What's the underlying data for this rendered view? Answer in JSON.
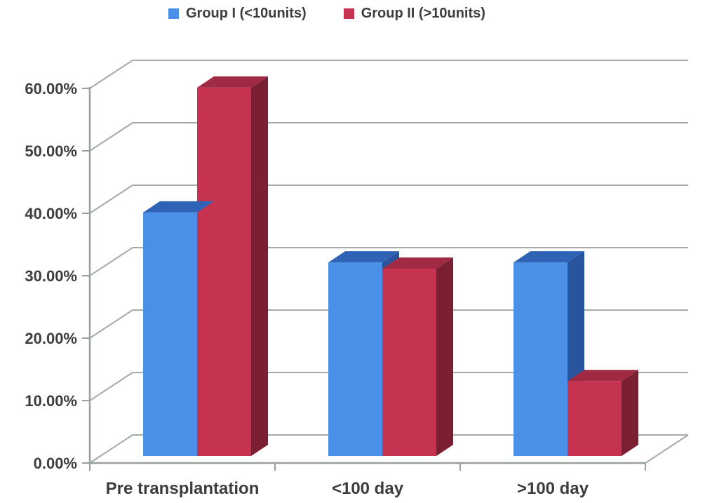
{
  "chart_data": {
    "type": "bar",
    "variant": "3d-clustered-column",
    "title": "",
    "xlabel": "",
    "ylabel": "",
    "categories": [
      "Pre transplantation",
      "<100 day",
      ">100 day"
    ],
    "series": [
      {
        "name": "Group I (<10units)",
        "values": [
          39,
          31,
          31
        ],
        "color_front": "#4a90e8",
        "color_top": "#2f63b5",
        "color_side": "#28549e"
      },
      {
        "name": "Group II (>10units)",
        "values": [
          59,
          30,
          12
        ],
        "color_front": "#c63350",
        "color_top": "#a02a44",
        "color_side": "#7b1f33"
      }
    ],
    "y_ticks": [
      {
        "value": 0,
        "label": "0.00%"
      },
      {
        "value": 10,
        "label": "10.00%"
      },
      {
        "value": 20,
        "label": "20.00%"
      },
      {
        "value": 30,
        "label": "30.00%"
      },
      {
        "value": 40,
        "label": "40.00%"
      },
      {
        "value": 50,
        "label": "50.00%"
      },
      {
        "value": 60,
        "label": "60.00%"
      }
    ],
    "ylim": [
      0,
      60
    ],
    "grid": true,
    "legend_position": "top",
    "colors": {
      "axis": "#98a199",
      "grid": "#a4aca5",
      "text": "#3d3d3d",
      "background": "#ffffff"
    }
  }
}
